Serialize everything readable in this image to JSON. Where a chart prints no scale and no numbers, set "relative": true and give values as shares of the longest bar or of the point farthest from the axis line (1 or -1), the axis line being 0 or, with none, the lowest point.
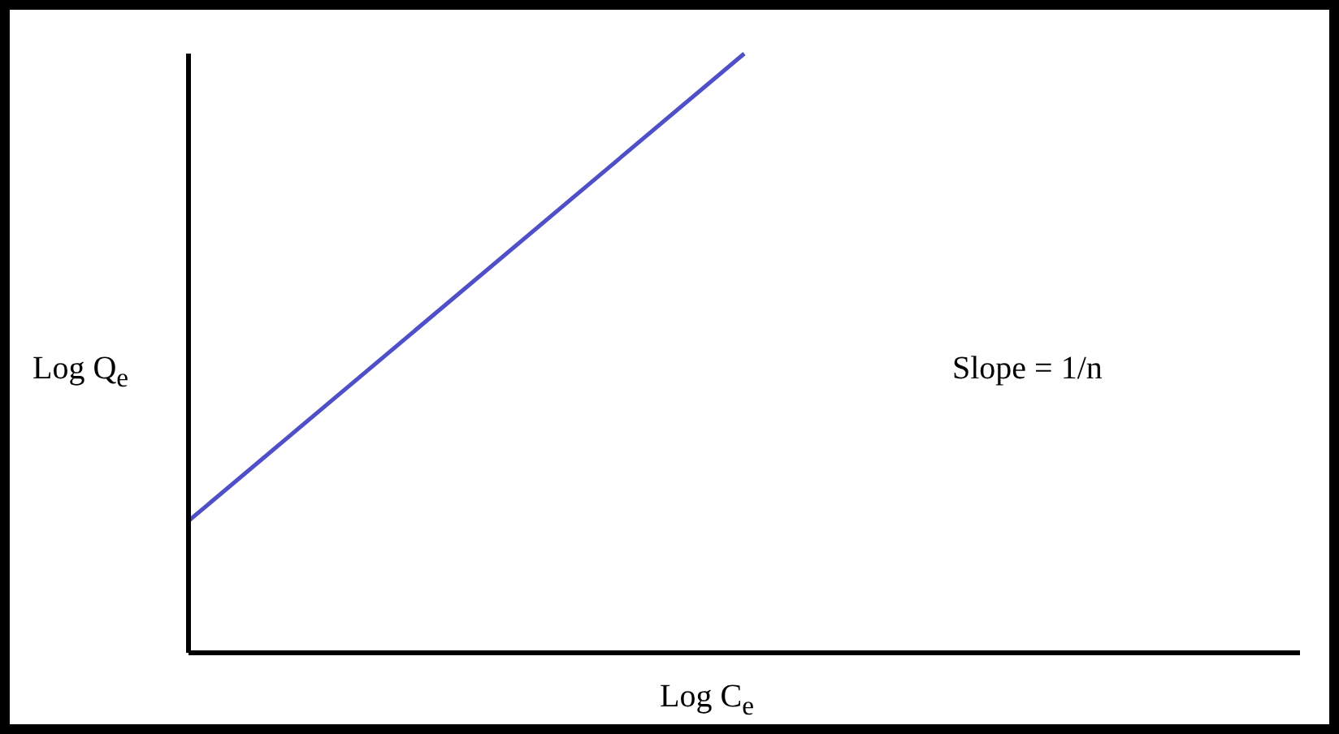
{
  "chart_data": {
    "type": "line",
    "relative": true,
    "xlabel": "Log C$_{e}$",
    "ylabel": "Log Q$_{e}$",
    "annotations": [
      "Slope = 1/n"
    ],
    "categories": [
      null,
      null,
      null
    ],
    "series": [
      {
        "color": "#4f4fc8",
        "values": [
          0.22,
          1,
          null
        ]
      }
    ]
  }
}
